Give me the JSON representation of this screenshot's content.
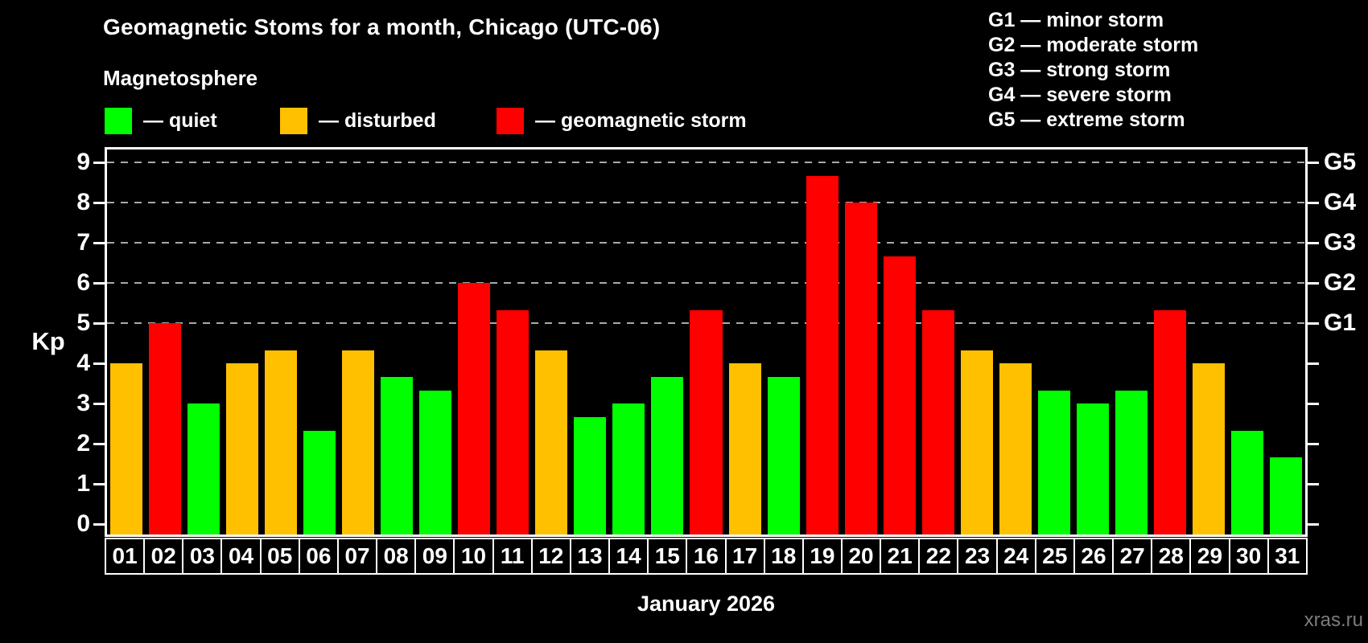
{
  "title": "Geomagnetic Stoms for a month, Chicago (UTC-06)",
  "subtitle": "Magnetosphere",
  "magnetosphere_legend": [
    {
      "status": "quiet",
      "label": "— quiet",
      "color": "#00FF00"
    },
    {
      "status": "disturbed",
      "label": "— disturbed",
      "color": "#FFC000"
    },
    {
      "status": "storm",
      "label": "— geomagnetic storm",
      "color": "#FF0000"
    }
  ],
  "storm_scale_legend": [
    "G1 — minor storm",
    "G2 — moderate storm",
    "G3 — strong storm",
    "G4 — severe storm",
    "G5 — extreme storm"
  ],
  "footer": {
    "month_label": "January 2026",
    "watermark": "xras.ru"
  },
  "chart_data": {
    "type": "bar",
    "title": "Geomagnetic Stoms for a month, Chicago (UTC-06)",
    "ylabel": "Kp",
    "x_categories": [
      "01",
      "02",
      "03",
      "04",
      "05",
      "06",
      "07",
      "08",
      "09",
      "10",
      "11",
      "12",
      "13",
      "14",
      "15",
      "16",
      "17",
      "18",
      "19",
      "20",
      "21",
      "22",
      "23",
      "24",
      "25",
      "26",
      "27",
      "28",
      "29",
      "30",
      "31"
    ],
    "values": [
      4,
      5,
      3,
      4,
      4.33,
      2.33,
      4.33,
      3.67,
      3.33,
      6,
      5.33,
      4.33,
      2.67,
      3,
      3.67,
      5.33,
      4,
      3.67,
      8.67,
      8,
      6.67,
      5.33,
      4.33,
      4,
      3.33,
      3,
      3.33,
      5.33,
      4,
      2.33,
      1.67
    ],
    "statuses": [
      "disturbed",
      "storm",
      "quiet",
      "disturbed",
      "disturbed",
      "quiet",
      "disturbed",
      "quiet",
      "quiet",
      "storm",
      "storm",
      "disturbed",
      "quiet",
      "quiet",
      "quiet",
      "storm",
      "disturbed",
      "quiet",
      "storm",
      "storm",
      "storm",
      "storm",
      "disturbed",
      "disturbed",
      "quiet",
      "quiet",
      "quiet",
      "storm",
      "disturbed",
      "quiet",
      "quiet"
    ],
    "status_colors": {
      "quiet": "#00FF00",
      "disturbed": "#FFC000",
      "storm": "#FF0000"
    },
    "y_ticks": [
      0,
      1,
      2,
      3,
      4,
      5,
      6,
      7,
      8,
      9
    ],
    "ylim": [
      0,
      9.4
    ],
    "gridlines_at_kp": [
      5,
      6,
      7,
      8,
      9
    ],
    "right_axis": [
      {
        "kp": 5,
        "label": "G1"
      },
      {
        "kp": 6,
        "label": "G2"
      },
      {
        "kp": 7,
        "label": "G3"
      },
      {
        "kp": 8,
        "label": "G4"
      },
      {
        "kp": 9,
        "label": "G5"
      }
    ],
    "grid": "dashed horizontal lines at storm levels only",
    "legend_position": "top",
    "background": "#000000"
  }
}
